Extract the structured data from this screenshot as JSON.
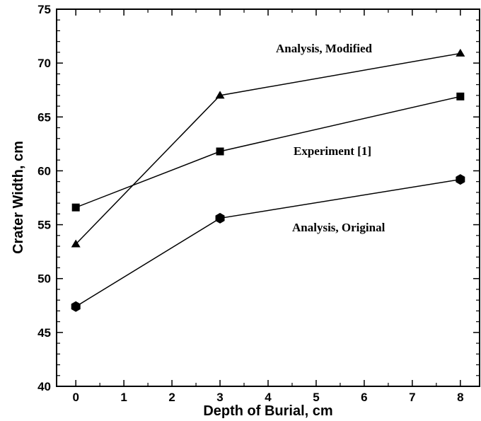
{
  "chart_data": {
    "type": "line",
    "xlabel": "Depth of Burial, cm",
    "ylabel": "Crater Width, cm",
    "xlim": [
      -0.4,
      8.4
    ],
    "ylim": [
      40,
      75
    ],
    "xticks": [
      "0",
      "1",
      "2",
      "3",
      "4",
      "5",
      "6",
      "7",
      "8"
    ],
    "yticks": [
      "40",
      "45",
      "50",
      "55",
      "60",
      "65",
      "70",
      "75"
    ],
    "x": [
      0,
      3,
      8
    ],
    "series": [
      {
        "name": "Analysis, Modified",
        "marker": "triangle",
        "values": [
          53.2,
          67.0,
          70.9
        ]
      },
      {
        "name": "Experiment [1]",
        "marker": "square",
        "values": [
          56.6,
          61.8,
          66.9
        ]
      },
      {
        "name": "Analysis, Original",
        "marker": "hexagon",
        "values": [
          47.4,
          55.6,
          59.2
        ]
      }
    ],
    "grid": false,
    "legend": "inline labels"
  }
}
